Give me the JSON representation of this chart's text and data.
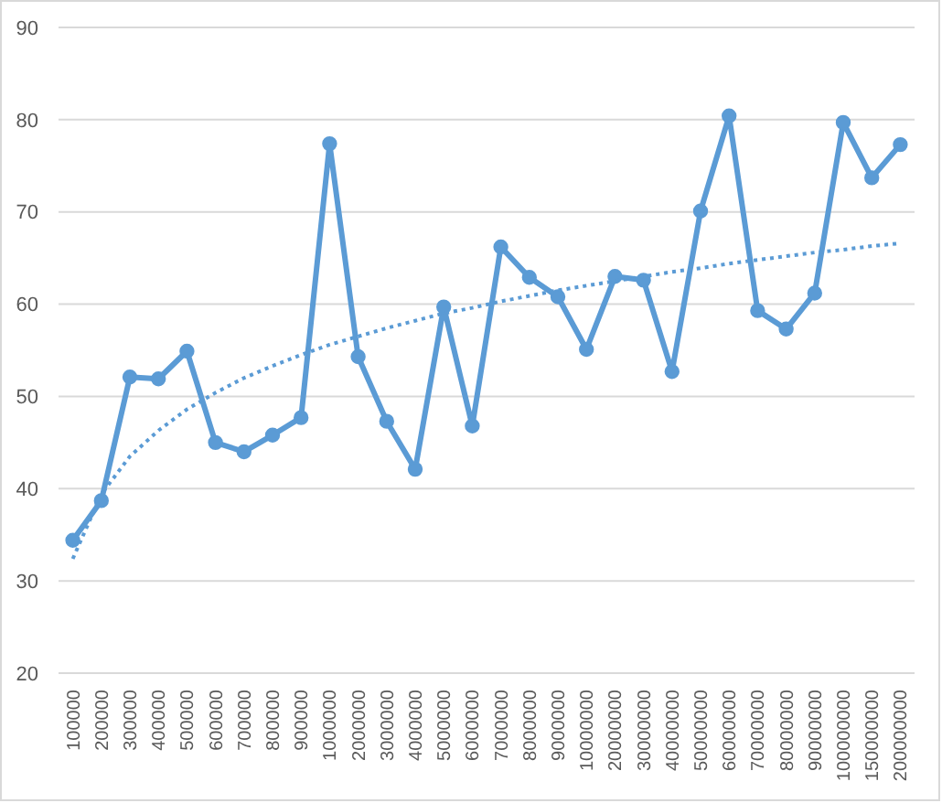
{
  "chart_data": {
    "type": "line",
    "categories": [
      "100000",
      "200000",
      "300000",
      "400000",
      "500000",
      "600000",
      "700000",
      "800000",
      "900000",
      "1000000",
      "2000000",
      "3000000",
      "4000000",
      "5000000",
      "6000000",
      "7000000",
      "8000000",
      "9000000",
      "10000000",
      "20000000",
      "30000000",
      "40000000",
      "50000000",
      "60000000",
      "70000000",
      "80000000",
      "90000000",
      "100000000",
      "150000000",
      "200000000"
    ],
    "series": [
      {
        "type": "line",
        "color": "#5b9bd5",
        "marker": "circle",
        "line_style": "solid",
        "values": [
          34.4,
          38.7,
          52.1,
          51.9,
          54.9,
          45.0,
          44.0,
          45.8,
          47.7,
          77.4,
          54.3,
          47.3,
          42.1,
          59.7,
          46.8,
          66.2,
          62.9,
          60.8,
          55.1,
          63.0,
          62.6,
          52.7,
          70.1,
          80.4,
          59.3,
          57.3,
          61.2,
          79.7,
          73.7,
          77.3
        ]
      },
      {
        "type": "line",
        "color": "#5b9bd5",
        "marker": "none",
        "line_style": "dotted",
        "values": [
          32.4,
          39.4,
          43.5,
          46.3,
          48.6,
          50.4,
          52.0,
          53.3,
          54.5,
          55.6,
          56.5,
          57.4,
          58.2,
          59.0,
          59.6,
          60.3,
          60.9,
          61.5,
          62.0,
          62.5,
          63.0,
          63.5,
          63.9,
          64.4,
          64.8,
          65.2,
          65.6,
          65.9,
          66.3,
          66.6
        ]
      }
    ],
    "ylim": [
      20,
      90
    ],
    "yticks": [
      20,
      30,
      40,
      50,
      60,
      70,
      80,
      90
    ],
    "grid": "y"
  }
}
